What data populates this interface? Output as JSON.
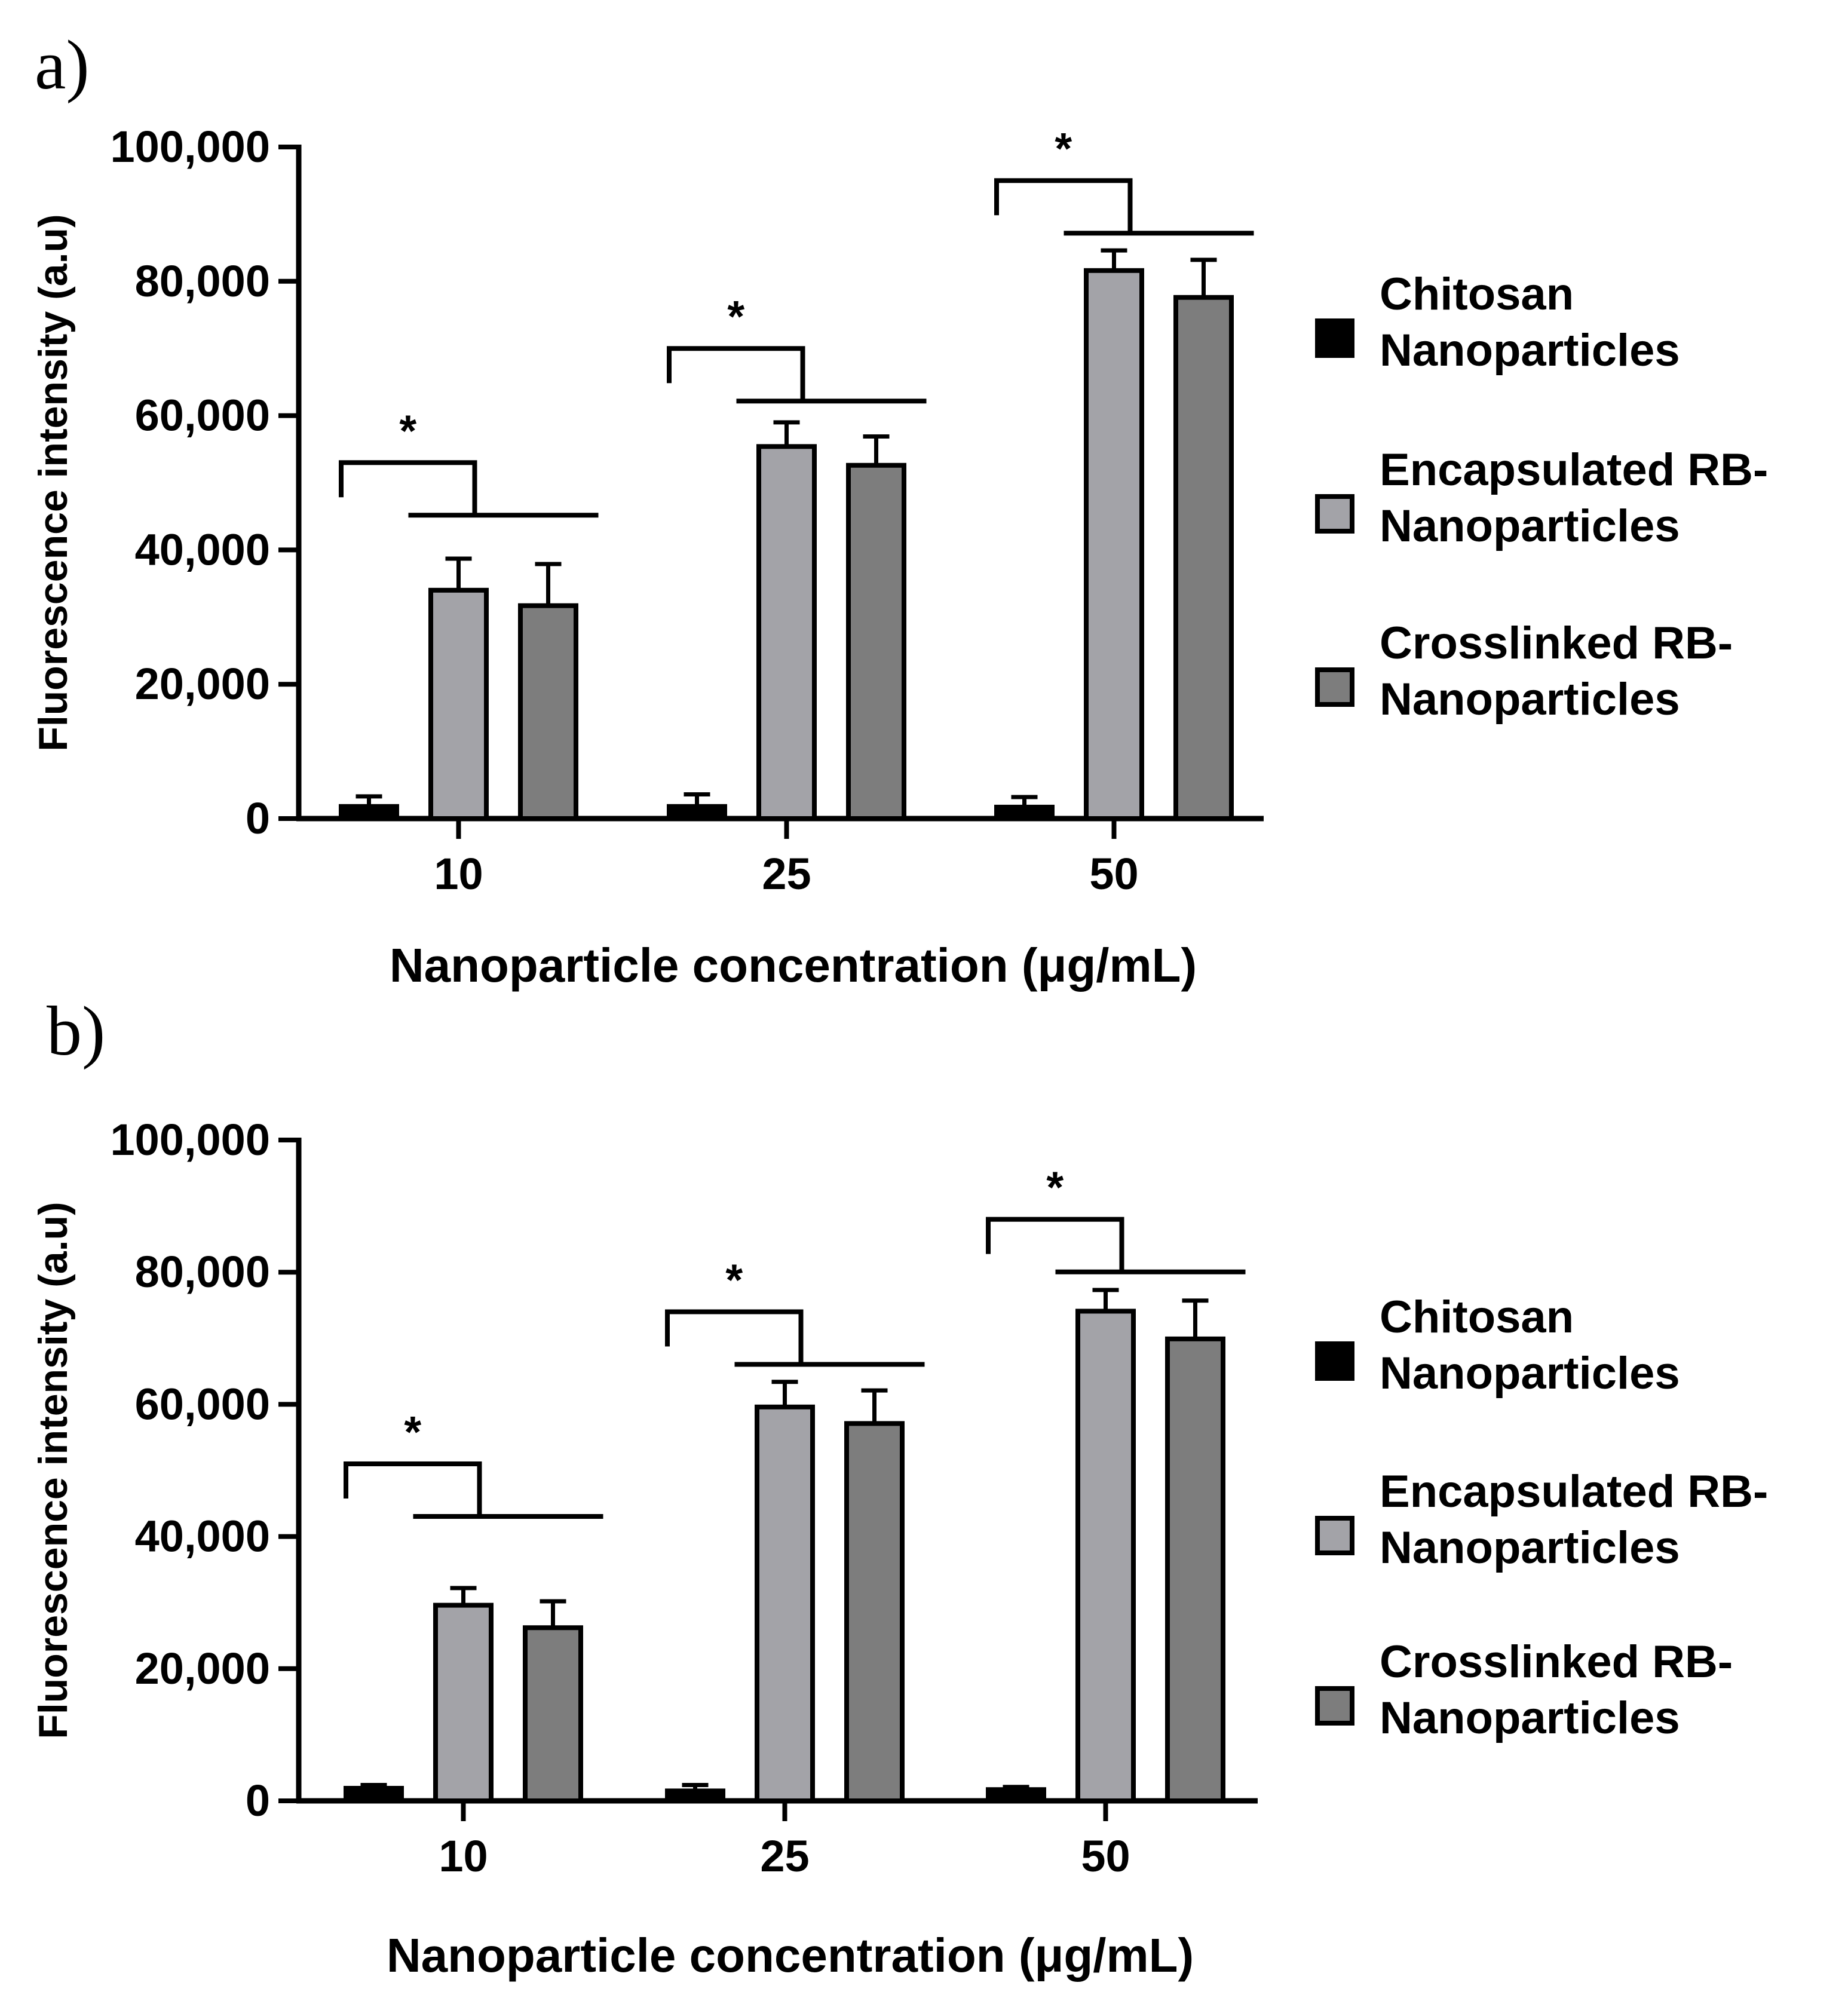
{
  "figure": {
    "colors": {
      "chitosan": "#000000",
      "encapsulated": "#a3a3a8",
      "crosslinked": "#7d7d7d",
      "axis": "#000000"
    },
    "legend": [
      {
        "key": "chitosan",
        "line1": "Chitosan",
        "line2": "Nanoparticles"
      },
      {
        "key": "encapsulated",
        "line1": "Encapsulated RB-",
        "line2": "Nanoparticles"
      },
      {
        "key": "crosslinked",
        "line1": "Crosslinked RB-",
        "line2": "Nanoparticles"
      }
    ]
  },
  "chart_data": [
    {
      "panel": "a)",
      "type": "bar",
      "xlabel": "Nanoparticle concentration (μg/mL)",
      "ylabel": "Fluorescence intensity (a.u)",
      "ylim": [
        0,
        100000
      ],
      "yticks": [
        0,
        20000,
        40000,
        60000,
        80000,
        100000
      ],
      "ytick_labels": [
        "0",
        "20,000",
        "40,000",
        "60,000",
        "80,000",
        "100,000"
      ],
      "categories": [
        "10",
        "25",
        "50"
      ],
      "series": [
        {
          "name": "Chitosan Nanoparticles",
          "key": "chitosan",
          "values": [
            1800,
            1800,
            1700
          ],
          "errors": [
            1500,
            1800,
            1500
          ]
        },
        {
          "name": "Encapsulated RB-Nanoparticles",
          "key": "encapsulated",
          "values": [
            34000,
            55400,
            81600
          ],
          "errors": [
            4700,
            3600,
            3000
          ]
        },
        {
          "name": "Crosslinked RB-Nanoparticles",
          "key": "crosslinked",
          "values": [
            31700,
            52600,
            77600
          ],
          "errors": [
            6200,
            4300,
            5600
          ]
        }
      ],
      "significance": [
        {
          "category": "10",
          "label": "*",
          "y": 53000
        },
        {
          "category": "25",
          "label": "*",
          "y": 70000
        },
        {
          "category": "50",
          "label": "*",
          "y": 95000
        }
      ]
    },
    {
      "panel": "b)",
      "type": "bar",
      "xlabel": "Nanoparticle concentration (μg/mL)",
      "ylabel": "Fluorescence intensity (a.u)",
      "ylim": [
        0,
        100000
      ],
      "yticks": [
        0,
        20000,
        40000,
        60000,
        80000,
        100000
      ],
      "ytick_labels": [
        "0",
        "20,000",
        "40,000",
        "60,000",
        "80,000",
        "100,000"
      ],
      "categories": [
        "10",
        "25",
        "50"
      ],
      "series": [
        {
          "name": "Chitosan Nanoparticles",
          "key": "chitosan",
          "values": [
            1900,
            1500,
            1700
          ],
          "errors": [
            500,
            900,
            400
          ]
        },
        {
          "name": "Encapsulated RB-Nanoparticles",
          "key": "encapsulated",
          "values": [
            29600,
            59600,
            74100
          ],
          "errors": [
            2600,
            3800,
            3200
          ]
        },
        {
          "name": "Crosslinked RB-Nanoparticles",
          "key": "crosslinked",
          "values": [
            26200,
            57100,
            69900
          ],
          "errors": [
            4000,
            5000,
            5800
          ]
        }
      ],
      "significance": [
        {
          "category": "10",
          "label": "*",
          "y": 51000
        },
        {
          "category": "25",
          "label": "*",
          "y": 74000
        },
        {
          "category": "50",
          "label": "*",
          "y": 88000
        }
      ]
    }
  ]
}
